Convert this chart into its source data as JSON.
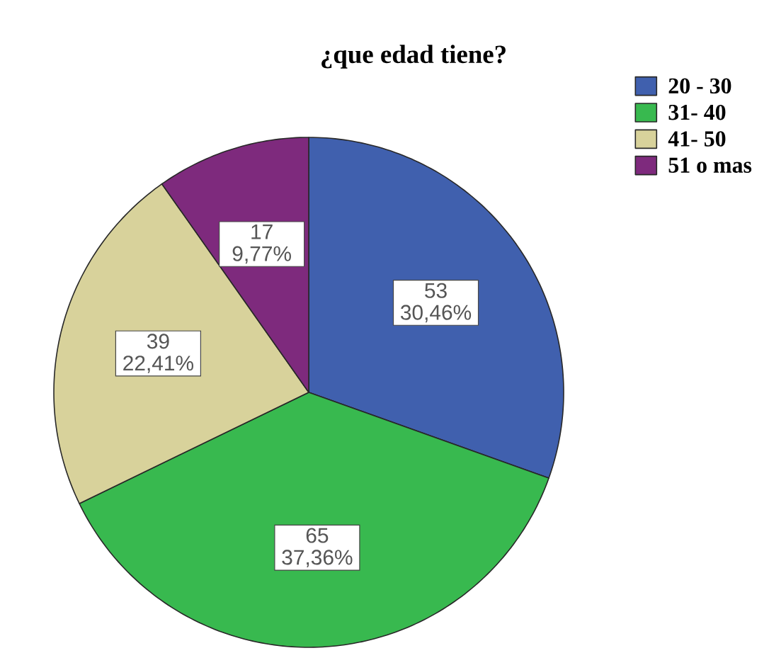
{
  "chart_data": {
    "type": "pie",
    "title": "¿que edad tiene?",
    "categories": [
      "20 - 30",
      "31-  40",
      "41- 50",
      "51 o mas"
    ],
    "values": [
      53,
      65,
      39,
      17
    ],
    "colors": [
      "#4060ae",
      "#38b94f",
      "#d8d29b",
      "#7e2a7d"
    ],
    "value_labels": [
      "53 30,46%",
      "65 37,36%",
      "39 22,41%",
      "17 9,77%"
    ],
    "legend": "top right"
  }
}
